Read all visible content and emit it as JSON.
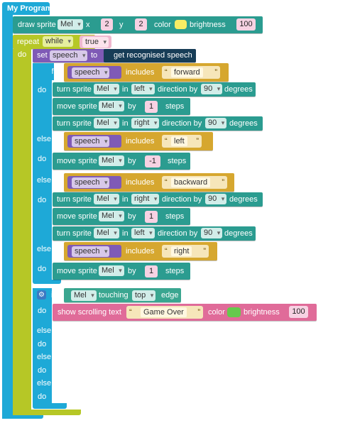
{
  "program": {
    "title": "My Program"
  },
  "colors": {
    "program": "#1ea9d7",
    "loop": "#b6c726",
    "motion": "#2b9c90",
    "variable": "#7f5ab6",
    "logic": "#d6a72f",
    "looks": "#e06b99",
    "condition_sprite": "#3aa690",
    "string_field": "#f6e6ba",
    "color_yellow": "#f7ed64",
    "color_green": "#66c94d"
  },
  "draw": {
    "label": "draw sprite",
    "sprite": "Mel",
    "x_label": "x",
    "x": "2",
    "y_label": "y",
    "y": "2",
    "color_label": "color",
    "brightness_label": "brightness",
    "brightness": "100"
  },
  "repeat": {
    "label": "repeat",
    "mode": "while",
    "cond": "true",
    "do_label": "do"
  },
  "set": {
    "label": "set",
    "var": "speech",
    "to_label": "to",
    "value": "get recognised speech"
  },
  "if1": {
    "if_label": "if",
    "do_label": "do",
    "elseif_label": "else if",
    "var": "speech",
    "includes_label": "includes",
    "open_quote": "“",
    "close_quote": "”",
    "words": [
      "forward",
      "left",
      "backward",
      "right"
    ]
  },
  "motion": {
    "turn_label": "turn sprite",
    "move_label": "move sprite",
    "in_label": "in",
    "direction_label": "direction by",
    "degrees_label": "degrees",
    "by_label": "by",
    "steps_label": "steps",
    "sprite": "Mel",
    "dir_left": "left",
    "dir_right": "right",
    "angle": "90",
    "step_one": "1",
    "step_neg": "-1"
  },
  "if2": {
    "if_label": "if",
    "do_label": "do",
    "elseif_label": "else if",
    "else_if_label": "else if",
    "sprite": "Mel",
    "touching_label": "touching",
    "edge_choice": "top",
    "edge_label": "edge",
    "scroll_label": "show scrolling text",
    "scroll_text": "Game Over",
    "color_label": "color",
    "brightness_label": "brightness",
    "brightness": "100"
  }
}
